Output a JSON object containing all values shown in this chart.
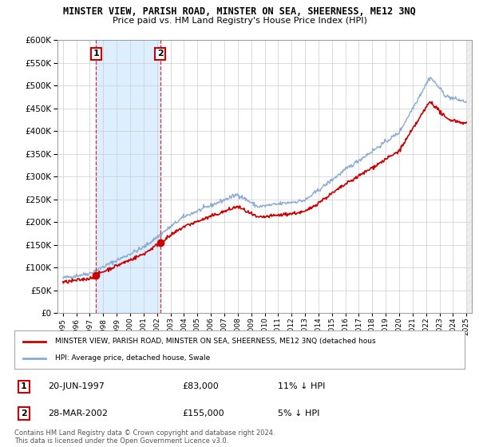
{
  "title": "MINSTER VIEW, PARISH ROAD, MINSTER ON SEA, SHEERNESS, ME12 3NQ",
  "subtitle": "Price paid vs. HM Land Registry's House Price Index (HPI)",
  "ylim": [
    0,
    600000
  ],
  "yticks": [
    0,
    50000,
    100000,
    150000,
    200000,
    250000,
    300000,
    350000,
    400000,
    450000,
    500000,
    550000,
    600000
  ],
  "xlim_start": 1994.6,
  "xlim_end": 2025.4,
  "sale1_x": 1997.47,
  "sale1_y": 83000,
  "sale1_label": "1",
  "sale1_date": "20-JUN-1997",
  "sale1_price": "£83,000",
  "sale1_hpi": "11% ↓ HPI",
  "sale2_x": 2002.23,
  "sale2_y": 155000,
  "sale2_label": "2",
  "sale2_date": "28-MAR-2002",
  "sale2_price": "£155,000",
  "sale2_hpi": "5% ↓ HPI",
  "red_line_color": "#cc0000",
  "blue_line_color": "#88aad4",
  "shade_color": "#ddeeff",
  "vline_color": "#cc0000",
  "marker_box_color": "#cc0000",
  "legend_line1": "MINSTER VIEW, PARISH ROAD, MINSTER ON SEA, SHEERNESS, ME12 3NQ (detached hous",
  "legend_line2": "HPI: Average price, detached house, Swale",
  "footer": "Contains HM Land Registry data © Crown copyright and database right 2024.\nThis data is licensed under the Open Government Licence v3.0.",
  "background_color": "#ffffff",
  "grid_color": "#cccccc"
}
